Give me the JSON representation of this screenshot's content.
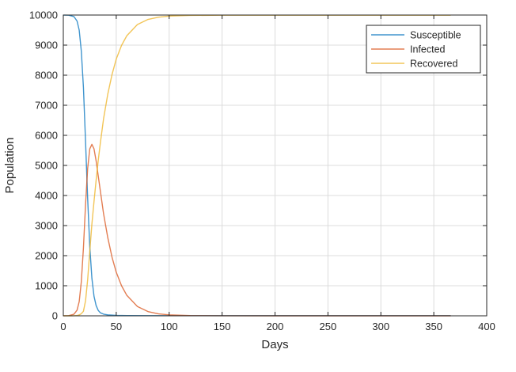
{
  "chart_data": {
    "type": "line",
    "title": "",
    "xlabel": "Days",
    "ylabel": "Population",
    "xlim": [
      0,
      400
    ],
    "ylim": [
      0,
      10000
    ],
    "xticks": [
      0,
      50,
      100,
      150,
      200,
      250,
      300,
      350,
      400
    ],
    "yticks": [
      0,
      1000,
      2000,
      3000,
      4000,
      5000,
      6000,
      7000,
      8000,
      9000,
      10000
    ],
    "grid": true,
    "legend_position": "top-right",
    "series": [
      {
        "name": "Susceptible",
        "color": "#0072BD",
        "points": [
          [
            0,
            9999
          ],
          [
            5,
            9995
          ],
          [
            10,
            9950
          ],
          [
            13,
            9800
          ],
          [
            15,
            9500
          ],
          [
            17,
            8800
          ],
          [
            19,
            7600
          ],
          [
            21,
            5800
          ],
          [
            23,
            3900
          ],
          [
            25,
            2300
          ],
          [
            27,
            1250
          ],
          [
            29,
            650
          ],
          [
            31,
            340
          ],
          [
            33,
            180
          ],
          [
            35,
            100
          ],
          [
            38,
            55
          ],
          [
            42,
            30
          ],
          [
            50,
            15
          ],
          [
            60,
            8
          ],
          [
            80,
            5
          ],
          [
            120,
            4
          ],
          [
            200,
            4
          ],
          [
            366,
            4
          ]
        ]
      },
      {
        "name": "Infected",
        "color": "#D95319",
        "points": [
          [
            0,
            1
          ],
          [
            5,
            5
          ],
          [
            10,
            50
          ],
          [
            13,
            190
          ],
          [
            15,
            470
          ],
          [
            17,
            1130
          ],
          [
            19,
            2250
          ],
          [
            21,
            3700
          ],
          [
            23,
            4900
          ],
          [
            25,
            5550
          ],
          [
            27,
            5700
          ],
          [
            29,
            5550
          ],
          [
            31,
            5150
          ],
          [
            33,
            4650
          ],
          [
            35,
            4150
          ],
          [
            38,
            3400
          ],
          [
            42,
            2600
          ],
          [
            46,
            1950
          ],
          [
            50,
            1450
          ],
          [
            55,
            1000
          ],
          [
            60,
            680
          ],
          [
            70,
            310
          ],
          [
            80,
            140
          ],
          [
            90,
            65
          ],
          [
            100,
            30
          ],
          [
            120,
            8
          ],
          [
            150,
            1
          ],
          [
            200,
            0
          ],
          [
            366,
            0
          ]
        ]
      },
      {
        "name": "Recovered",
        "color": "#EDB120",
        "points": [
          [
            0,
            0
          ],
          [
            5,
            0
          ],
          [
            10,
            1
          ],
          [
            13,
            10
          ],
          [
            15,
            30
          ],
          [
            17,
            70
          ],
          [
            19,
            150
          ],
          [
            21,
            500
          ],
          [
            23,
            1200
          ],
          [
            25,
            2150
          ],
          [
            27,
            3050
          ],
          [
            29,
            3800
          ],
          [
            31,
            4510
          ],
          [
            33,
            5170
          ],
          [
            35,
            5750
          ],
          [
            38,
            6545
          ],
          [
            42,
            7370
          ],
          [
            46,
            8020
          ],
          [
            50,
            8535
          ],
          [
            55,
            8990
          ],
          [
            60,
            9312
          ],
          [
            70,
            9685
          ],
          [
            80,
            9855
          ],
          [
            90,
            9930
          ],
          [
            100,
            9966
          ],
          [
            120,
            9988
          ],
          [
            150,
            9995
          ],
          [
            200,
            9996
          ],
          [
            366,
            9996
          ]
        ]
      }
    ]
  }
}
